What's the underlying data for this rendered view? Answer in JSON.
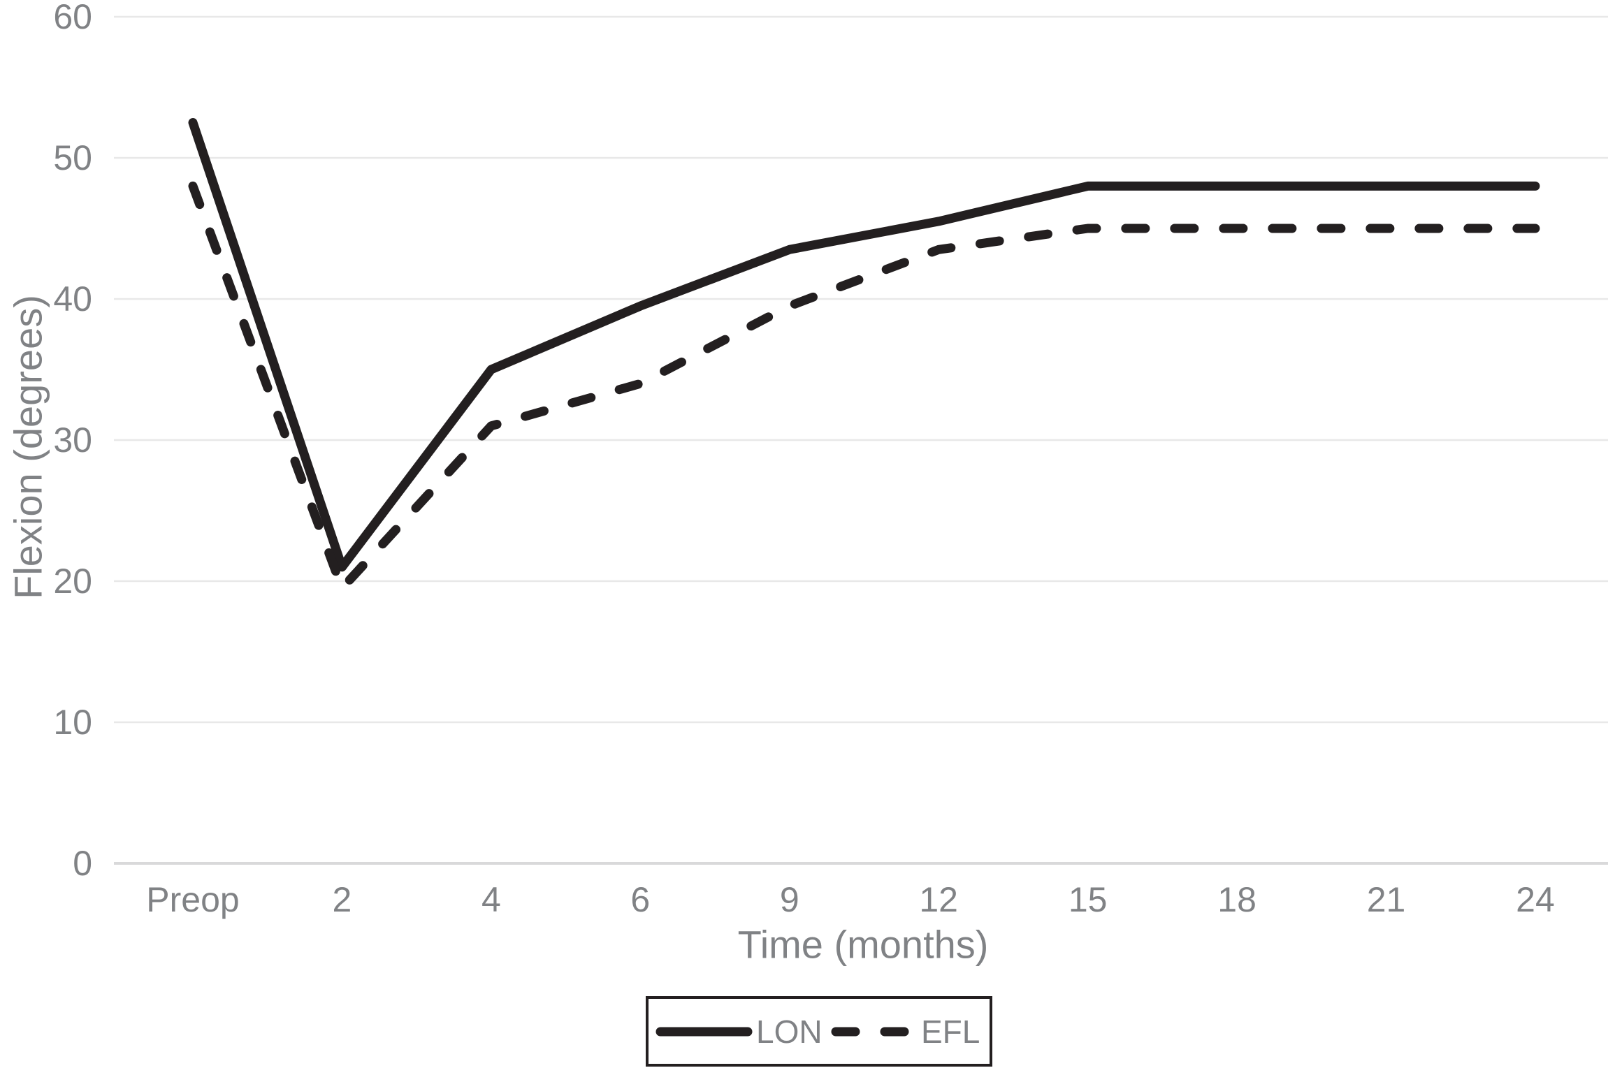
{
  "chart_data": {
    "type": "line",
    "title": "",
    "xlabel": "Time (months)",
    "ylabel": "Flexion (degrees)",
    "categories": [
      "Preop",
      "2",
      "4",
      "6",
      "9",
      "12",
      "15",
      "18",
      "21",
      "24"
    ],
    "series": [
      {
        "name": "LON",
        "style": "solid",
        "values": [
          52.5,
          21,
          35,
          39.5,
          43.5,
          45.5,
          48,
          48,
          48,
          48
        ]
      },
      {
        "name": "EFL",
        "style": "dashed",
        "values": [
          48,
          19.5,
          31,
          34,
          39.5,
          43.5,
          45,
          45,
          45,
          45
        ]
      }
    ],
    "ylim": [
      0,
      60
    ],
    "yticks": [
      0,
      10,
      20,
      30,
      40,
      50,
      60
    ],
    "grid": true,
    "legend_position": "bottom"
  },
  "colors": {
    "line": "#231f20",
    "text": "#808285",
    "gridline": "#e8e8e8",
    "baseline": "#d9d9da",
    "background": "#ffffff"
  }
}
